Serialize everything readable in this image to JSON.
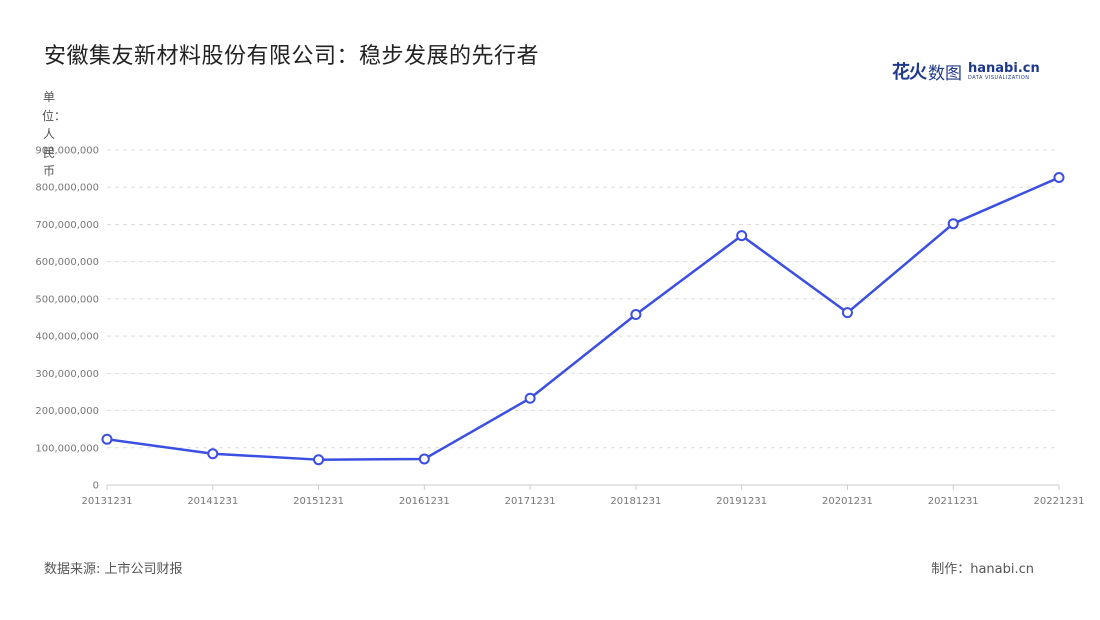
{
  "header": {
    "title": "安徽集友新材料股份有限公司：稳步发展的先行者"
  },
  "logo": {
    "cn_part1": "花火",
    "cn_part2": "数图",
    "en": "hanabi.cn",
    "en_sub": "DATA VISUALIZATION"
  },
  "footer": {
    "source": "数据来源: 上市公司财报",
    "maker": "制作：hanabi.cn"
  },
  "colors": {
    "line": "#3b4fe0",
    "grid": "#dddddd",
    "marker_fill": "#ffffff"
  },
  "chart_data": {
    "type": "line",
    "title": "安徽集友新材料股份有限公司：稳步发展的先行者",
    "ylabel": "单位：人民币",
    "xlabel": "",
    "categories": [
      "20131231",
      "20141231",
      "20151231",
      "20161231",
      "20171231",
      "20181231",
      "20191231",
      "20201231",
      "20211231",
      "20221231"
    ],
    "series": [
      {
        "values": [
          123000000,
          84000000,
          68000000,
          70000000,
          233000000,
          458000000,
          670000000,
          463000000,
          702000000,
          826000000
        ]
      }
    ],
    "ylim": [
      0,
      900000000
    ],
    "y_ticks": [
      "0",
      "100,000,000",
      "200,000,000",
      "300,000,000",
      "400,000,000",
      "500,000,000",
      "600,000,000",
      "700,000,000",
      "800,000,000",
      "900,000,000"
    ],
    "grid": true,
    "legend": "none"
  }
}
